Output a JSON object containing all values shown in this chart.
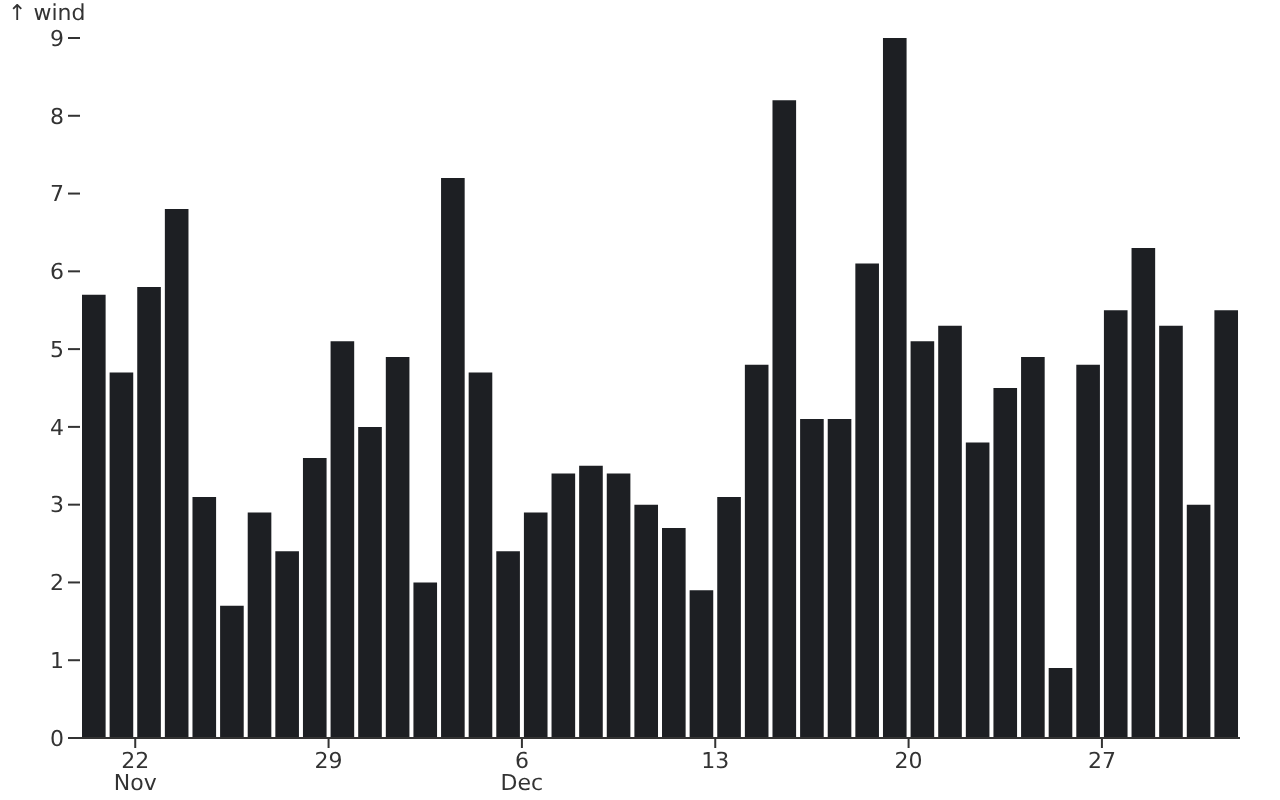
{
  "chart_data": {
    "type": "bar",
    "ylabel": "↑ wind",
    "color": "#1d1f23",
    "x": [
      "--11-20T12:00",
      "--11-21T12:00",
      "--11-22T12:00",
      "--11-23T12:00",
      "--11-24T12:00",
      "--11-25T12:00",
      "--11-26T12:00",
      "--11-27T12:00",
      "--11-28T12:00",
      "--11-29T12:00",
      "--11-30T12:00",
      "--12-01T12:00",
      "--12-02T12:00",
      "--12-03T12:00",
      "--12-04T12:00",
      "--12-05T12:00",
      "--12-06T12:00",
      "--12-07T12:00",
      "--12-08T12:00",
      "--12-09T12:00",
      "--12-10T12:00",
      "--12-11T12:00",
      "--12-12T12:00",
      "--12-13T12:00",
      "--12-14T12:00",
      "--12-15T12:00",
      "--12-16T12:00",
      "--12-17T12:00",
      "--12-18T12:00",
      "--12-19T12:00",
      "--12-20T12:00",
      "--12-21T12:00",
      "--12-22T12:00",
      "--12-23T12:00",
      "--12-24T12:00",
      "--12-25T12:00",
      "--12-26T12:00",
      "--12-27T12:00",
      "--12-28T12:00",
      "--12-29T12:00",
      "--12-30T12:00",
      "--12-31T12:00"
    ],
    "values": [
      5.7,
      4.7,
      5.8,
      6.8,
      3.1,
      1.7,
      2.9,
      2.4,
      3.6,
      5.1,
      4.0,
      4.9,
      2.0,
      7.2,
      4.7,
      2.4,
      2.9,
      3.4,
      3.5,
      3.4,
      3.0,
      2.7,
      1.9,
      3.1,
      4.8,
      8.2,
      4.1,
      4.1,
      6.1,
      9.0,
      5.1,
      5.3,
      3.8,
      4.5,
      4.9,
      0.9,
      4.8,
      5.5,
      6.3,
      5.3,
      3.0,
      5.5
    ],
    "xlim": [
      "--11-20T00:00",
      "--12-31T23:59"
    ],
    "xticks": [
      {
        "value": "--11-22",
        "label": "22\nNov"
      },
      {
        "value": "--11-29",
        "label": "29"
      },
      {
        "value": "--12-06",
        "label": "6\nDec"
      },
      {
        "value": "--12-13",
        "label": "13"
      },
      {
        "value": "--12-20",
        "label": "20"
      },
      {
        "value": "--12-27",
        "label": "27"
      }
    ],
    "ylim": [
      0,
      9
    ],
    "yticks": [
      0,
      1,
      2,
      3,
      4,
      5,
      6,
      7,
      8,
      9
    ],
    "grid": false,
    "legend": false
  }
}
